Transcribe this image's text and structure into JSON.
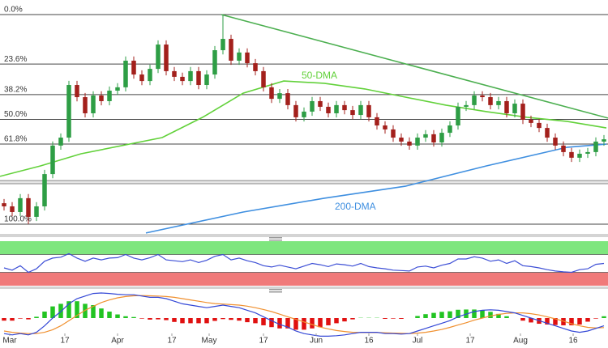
{
  "chart_data": [
    {
      "type": "candlestick",
      "xlim": [
        -0.5,
        74.5
      ],
      "ylim": [
        -4.25,
        106.95
      ],
      "up_color": "#2e9e45",
      "down_color": "#a3201c",
      "open": [
        10,
        8.5,
        5.8,
        12.4,
        3.5,
        8.5,
        23.9,
        37.5,
        41.3,
        66.4,
        60.6,
        52.9,
        61.4,
        58.7,
        63.7,
        65.3,
        78.0,
        71.4,
        68.3,
        74.1,
        85.7,
        73.0,
        70.3,
        68.3,
        73.0,
        66.4,
        71.4,
        83.0,
        88.4,
        78.0,
        81.9,
        76.8,
        73.0,
        65.3,
        59.8,
        62.5,
        56.8,
        51.0,
        53.7,
        58.7,
        56.0,
        52.9,
        56.8,
        54.4,
        52.1,
        56.8,
        51.0,
        47.1,
        45.2,
        41.3,
        39.4,
        37.5,
        41.3,
        42.9,
        39.0,
        43.6,
        47.1,
        56.0,
        56.8,
        61.4,
        60.6,
        56.8,
        58.7,
        52.9,
        57.5,
        49.8,
        48.3,
        45.9,
        41.3,
        37.5,
        34.4,
        31.7,
        33.6,
        34.4,
        39.4
      ],
      "high": [
        12,
        10.5,
        14.4,
        14.4,
        10.5,
        25.9,
        39.5,
        43.3,
        68.4,
        68.4,
        62.6,
        63.4,
        63.4,
        65.7,
        67.3,
        80,
        80,
        73.4,
        76.1,
        87.7,
        87.7,
        75,
        72.3,
        75,
        75,
        73.4,
        85,
        100,
        90.4,
        83.9,
        83.9,
        78.8,
        75,
        67.3,
        64.5,
        64.5,
        58.8,
        55.7,
        60.7,
        60.7,
        58,
        58.8,
        58.8,
        56.4,
        58.8,
        58.8,
        53,
        49.1,
        47.2,
        43.3,
        41.4,
        43.3,
        44.9,
        44.9,
        45.6,
        49.1,
        58,
        58.8,
        63.4,
        63.4,
        62.6,
        60.7,
        60.7,
        59.5,
        59.5,
        51.8,
        50.3,
        47.9,
        43.3,
        39.5,
        36.4,
        35.6,
        36.4,
        41.4,
        42.5
      ],
      "low": [
        6.5,
        3.8,
        3.8,
        0,
        1.5,
        6.5,
        21.9,
        35.5,
        39.3,
        58.6,
        50.9,
        50.9,
        56.7,
        56.7,
        61.7,
        63.3,
        69.4,
        66.3,
        66.3,
        72.1,
        71,
        68.3,
        66.3,
        66.3,
        64.4,
        64.4,
        69.4,
        81,
        76,
        76,
        74.8,
        71,
        63.3,
        57.8,
        57.8,
        54.8,
        49,
        49,
        51.7,
        54,
        50.9,
        50.9,
        52.4,
        50.1,
        50.1,
        49,
        45.1,
        43.2,
        39.3,
        37.4,
        35.5,
        35.5,
        39.3,
        37,
        37,
        41.6,
        45.1,
        54,
        54.8,
        58.6,
        54.8,
        54.8,
        50.9,
        50.9,
        47.8,
        46.3,
        43.9,
        39.3,
        35.5,
        32.4,
        29.7,
        29.7,
        31.6,
        32.4,
        37.4
      ],
      "close": [
        8.5,
        5.8,
        12.4,
        3.5,
        8.5,
        23.9,
        37.5,
        41.3,
        66.4,
        60.6,
        52.9,
        61.4,
        58.7,
        63.7,
        65.3,
        78.0,
        71.4,
        68.3,
        74.1,
        85.7,
        73.0,
        70.3,
        68.3,
        73.0,
        66.4,
        71.4,
        83.0,
        88.4,
        78.0,
        81.9,
        76.8,
        73.0,
        65.3,
        59.8,
        62.5,
        56.8,
        51.0,
        53.7,
        58.7,
        56.0,
        52.9,
        56.8,
        54.4,
        52.1,
        56.8,
        51.0,
        47.1,
        45.2,
        41.3,
        39.4,
        37.5,
        41.3,
        42.9,
        39.0,
        43.6,
        47.1,
        56.0,
        56.8,
        61.4,
        60.6,
        56.8,
        58.7,
        52.9,
        57.5,
        49.8,
        48.3,
        45.9,
        41.3,
        37.5,
        34.4,
        31.7,
        33.6,
        34.4,
        39.4,
        40.5
      ],
      "fib": {
        "high": 100,
        "low": 0,
        "color": "#444444",
        "levels": [
          {
            "value": 0,
            "label": "0.0%"
          },
          {
            "value": 23.6,
            "label": "23.6%"
          },
          {
            "value": 38.2,
            "label": "38.2%"
          },
          {
            "value": 50,
            "label": "50.0%"
          },
          {
            "value": 61.8,
            "label": "61.8%"
          },
          {
            "value": 100,
            "label": "100.0%"
          }
        ]
      },
      "support_band": [
        19.3,
        20.8
      ],
      "trendline": {
        "color": "#4caf50",
        "x": [
          26.8,
          74.5
        ],
        "values": [
          100,
          50.6
        ]
      },
      "series": [
        {
          "name": "50-DMA",
          "color": "#62d13a",
          "x": [
            -0.5,
            4.5,
            9.5,
            19.5,
            24.5,
            29.5,
            34.5,
            39.5,
            44.5,
            49.5,
            54.5,
            59.5,
            64.5,
            69.5,
            74.3
          ],
          "values": [
            22.8,
            27.8,
            33.6,
            41.3,
            51,
            62.5,
            68.3,
            67.2,
            64.5,
            60.6,
            56.8,
            53.7,
            51,
            49,
            45.9
          ]
        },
        {
          "name": "200-DMA",
          "color": "#3f8fe0",
          "x": [
            17.5,
            29.5,
            39.5,
            49.5,
            59.5,
            69.5,
            74.3
          ],
          "values": [
            -4.2,
            5.8,
            12.4,
            18.1,
            27.8,
            36.7,
            38.2
          ]
        }
      ]
    },
    {
      "type": "line",
      "xlim": [
        -0.5,
        74.5
      ],
      "ylim": [
        0,
        100
      ],
      "overbought": 70,
      "oversold": 30,
      "color": "#3d4fd6",
      "overbought_color": "#7ee67e",
      "oversold_color": "#f07a7a",
      "values": [
        40,
        35,
        45,
        30,
        38,
        55,
        62,
        64,
        72,
        62,
        55,
        62,
        58,
        62,
        63,
        70,
        62,
        58,
        63,
        70,
        58,
        56,
        54,
        58,
        52,
        57,
        66,
        70,
        58,
        62,
        56,
        52,
        45,
        42,
        46,
        42,
        38,
        44,
        50,
        47,
        43,
        49,
        47,
        44,
        50,
        43,
        40,
        38,
        35,
        34,
        33,
        42,
        44,
        40,
        46,
        50,
        60,
        60,
        65,
        62,
        55,
        58,
        50,
        56,
        45,
        43,
        40,
        36,
        33,
        31,
        30,
        36,
        38,
        48,
        50
      ]
    },
    {
      "type": "macd",
      "xlim": [
        -0.5,
        74.5
      ],
      "ylim": [
        -1,
        1
      ],
      "macd_color": "#3347d6",
      "signal_color": "#f0902f",
      "positive_color": "#22c422",
      "negative_color": "#e01010",
      "macd": [
        -0.6,
        -0.65,
        -0.6,
        -0.65,
        -0.55,
        -0.3,
        0.0,
        0.25,
        0.55,
        0.75,
        0.85,
        0.95,
        0.97,
        0.95,
        0.92,
        0.9,
        0.9,
        0.85,
        0.8,
        0.8,
        0.75,
        0.65,
        0.55,
        0.5,
        0.45,
        0.4,
        0.45,
        0.5,
        0.45,
        0.4,
        0.3,
        0.2,
        0.05,
        -0.1,
        -0.25,
        -0.35,
        -0.5,
        -0.6,
        -0.65,
        -0.7,
        -0.7,
        -0.68,
        -0.65,
        -0.6,
        -0.55,
        -0.55,
        -0.55,
        -0.6,
        -0.6,
        -0.62,
        -0.6,
        -0.5,
        -0.4,
        -0.3,
        -0.2,
        -0.1,
        0.05,
        0.15,
        0.25,
        0.3,
        0.32,
        0.3,
        0.25,
        0.2,
        0.1,
        0.0,
        -0.1,
        -0.2,
        -0.3,
        -0.4,
        -0.5,
        -0.55,
        -0.5,
        -0.4,
        -0.3
      ],
      "signal": [
        -0.5,
        -0.55,
        -0.58,
        -0.6,
        -0.6,
        -0.55,
        -0.45,
        -0.3,
        -0.1,
        0.1,
        0.3,
        0.45,
        0.6,
        0.7,
        0.78,
        0.83,
        0.86,
        0.87,
        0.86,
        0.85,
        0.83,
        0.8,
        0.75,
        0.7,
        0.65,
        0.6,
        0.56,
        0.54,
        0.52,
        0.5,
        0.46,
        0.4,
        0.33,
        0.25,
        0.15,
        0.05,
        -0.05,
        -0.15,
        -0.25,
        -0.35,
        -0.42,
        -0.48,
        -0.52,
        -0.55,
        -0.56,
        -0.56,
        -0.56,
        -0.57,
        -0.58,
        -0.59,
        -0.6,
        -0.58,
        -0.55,
        -0.5,
        -0.44,
        -0.36,
        -0.27,
        -0.18,
        -0.08,
        0.0,
        0.08,
        0.14,
        0.18,
        0.2,
        0.2,
        0.17,
        0.12,
        0.05,
        -0.03,
        -0.12,
        -0.22,
        -0.3,
        -0.36,
        -0.38,
        -0.37
      ],
      "histogram": [
        -0.1,
        -0.1,
        -0.02,
        -0.05,
        0.05,
        0.25,
        0.45,
        0.55,
        0.65,
        0.65,
        0.55,
        0.5,
        0.37,
        0.25,
        0.14,
        0.07,
        0.04,
        -0.02,
        -0.06,
        -0.05,
        -0.08,
        -0.15,
        -0.2,
        -0.2,
        -0.2,
        -0.2,
        -0.11,
        -0.04,
        -0.07,
        -0.1,
        -0.16,
        -0.2,
        -0.28,
        -0.35,
        -0.4,
        -0.4,
        -0.45,
        -0.45,
        -0.4,
        -0.35,
        -0.28,
        -0.2,
        -0.13,
        -0.05,
        0.01,
        0.01,
        0.01,
        -0.03,
        -0.02,
        -0.03,
        0.0,
        0.08,
        0.15,
        0.2,
        0.24,
        0.26,
        0.32,
        0.33,
        0.33,
        0.3,
        0.24,
        0.16,
        0.07,
        0.0,
        -0.1,
        -0.17,
        -0.22,
        -0.25,
        -0.27,
        -0.28,
        -0.28,
        -0.25,
        -0.14,
        -0.02,
        0.07
      ],
      "xticks": [
        {
          "value": 0.7,
          "label": "Mar"
        },
        {
          "value": 7.5,
          "label": "17"
        },
        {
          "value": 14,
          "label": "Apr"
        },
        {
          "value": 20.7,
          "label": "17"
        },
        {
          "value": 25.3,
          "label": "May"
        },
        {
          "value": 32,
          "label": "17"
        },
        {
          "value": 38.5,
          "label": "Jun"
        },
        {
          "value": 45,
          "label": "16"
        },
        {
          "value": 51,
          "label": "Jul"
        },
        {
          "value": 57.5,
          "label": "17"
        },
        {
          "value": 63.7,
          "label": "Aug"
        },
        {
          "value": 70.2,
          "label": "16"
        }
      ]
    }
  ]
}
